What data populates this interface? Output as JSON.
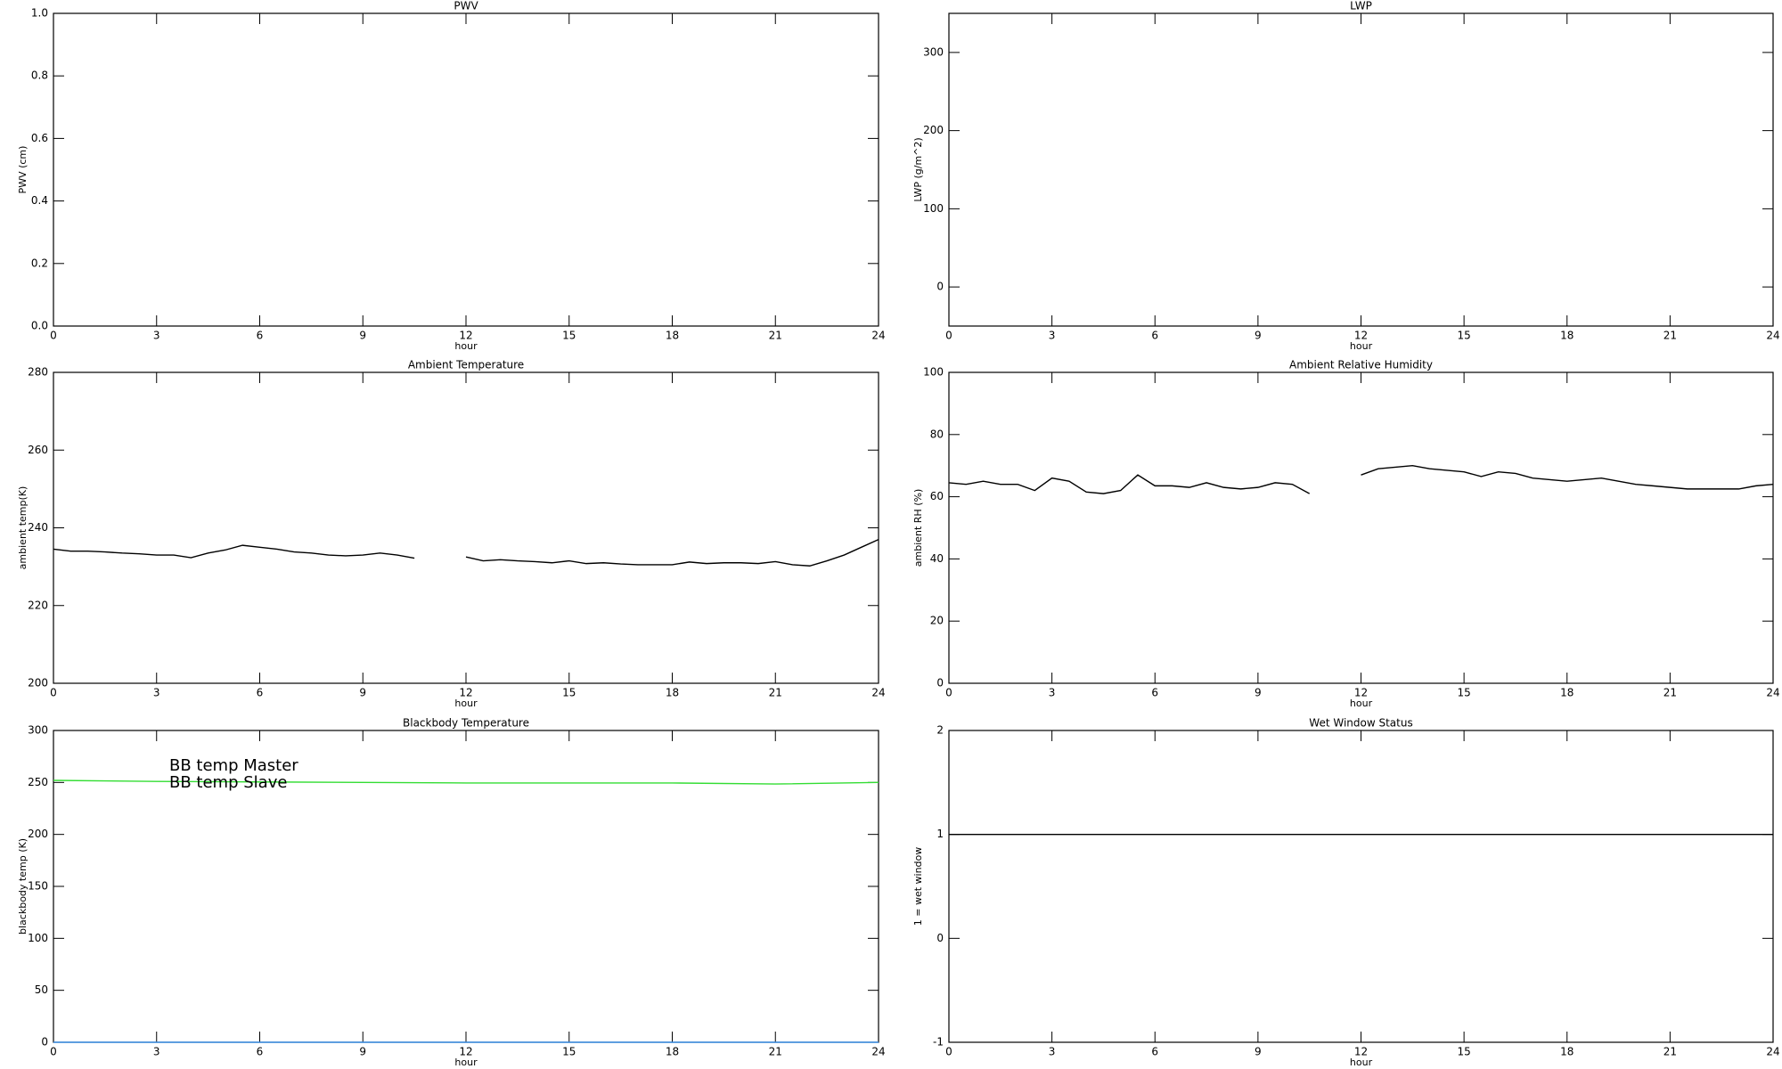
{
  "chart_data": [
    {
      "type": "line",
      "title": "PWV",
      "xlabel": "hour",
      "ylabel": "PWV (cm)",
      "xlim": [
        0,
        24
      ],
      "xticks": [
        0,
        3,
        6,
        9,
        12,
        15,
        18,
        21,
        24
      ],
      "ylim": [
        0,
        1
      ],
      "yticks": [
        {
          "value": 0,
          "label": "0.0"
        },
        0.2,
        0.4,
        0.6,
        0.8,
        {
          "value": 1,
          "label": "1.0"
        }
      ]
    },
    {
      "type": "line",
      "title": "LWP",
      "xlabel": "hour",
      "ylabel": "LWP (g/m^2)",
      "xlim": [
        0,
        24
      ],
      "xticks": [
        0,
        3,
        6,
        9,
        12,
        15,
        18,
        21,
        24
      ],
      "ylim": [
        -50,
        350
      ],
      "yticks": [
        0,
        100,
        200,
        300
      ]
    },
    {
      "type": "line",
      "title": "Ambient Temperature",
      "xlabel": "hour",
      "ylabel": "ambient temp(K)",
      "xlim": [
        0,
        24
      ],
      "xticks": [
        0,
        3,
        6,
        9,
        12,
        15,
        18,
        21,
        24
      ],
      "ylim": [
        200,
        280
      ],
      "yticks": [
        200,
        220,
        240,
        260,
        280
      ],
      "x": [
        0,
        0.5,
        1,
        1.5,
        2,
        2.5,
        3,
        3.5,
        4,
        4.5,
        5,
        5.5,
        6,
        6.5,
        7,
        7.5,
        8,
        8.5,
        9,
        9.5,
        10,
        10.5,
        11,
        11.5,
        12,
        12.5,
        13,
        13.5,
        14,
        14.5,
        15,
        15.5,
        16,
        16.5,
        17,
        17.5,
        18,
        18.5,
        19,
        19.5,
        20,
        20.5,
        21,
        21.5,
        22,
        22.5,
        23,
        23.5,
        24
      ],
      "series": [
        {
          "color": "#000000",
          "values": [
            234.5,
            234,
            234,
            233.8,
            233.5,
            233.3,
            233,
            233,
            232.3,
            233.5,
            234.3,
            235.5,
            235,
            234.5,
            233.8,
            233.5,
            233,
            232.8,
            233,
            233.5,
            233,
            232.2,
            null,
            null,
            232.5,
            231.5,
            231.8,
            231.5,
            231.3,
            231,
            231.5,
            230.8,
            231,
            230.7,
            230.5,
            230.5,
            230.5,
            231.2,
            230.8,
            231,
            231,
            230.8,
            231.3,
            230.5,
            230.2,
            231.5,
            233,
            235,
            237
          ]
        }
      ]
    },
    {
      "type": "line",
      "title": "Ambient Relative Humidity",
      "xlabel": "hour",
      "ylabel": "ambient RH (%)",
      "xlim": [
        0,
        24
      ],
      "xticks": [
        0,
        3,
        6,
        9,
        12,
        15,
        18,
        21,
        24
      ],
      "ylim": [
        0,
        100
      ],
      "yticks": [
        0,
        20,
        40,
        60,
        80,
        100
      ],
      "x": [
        0,
        0.5,
        1,
        1.5,
        2,
        2.5,
        3,
        3.5,
        4,
        4.5,
        5,
        5.5,
        6,
        6.5,
        7,
        7.5,
        8,
        8.5,
        9,
        9.5,
        10,
        10.5,
        11,
        11.5,
        12,
        12.5,
        13,
        13.5,
        14,
        14.5,
        15,
        15.5,
        16,
        16.5,
        17,
        17.5,
        18,
        18.5,
        19,
        19.5,
        20,
        20.5,
        21,
        21.5,
        22,
        22.5,
        23,
        23.5,
        24
      ],
      "series": [
        {
          "color": "#000000",
          "values": [
            64.5,
            64,
            65,
            64,
            64,
            62,
            66,
            65,
            61.5,
            61,
            62,
            67,
            63.5,
            63.5,
            63,
            64.5,
            63,
            62.5,
            63,
            64.5,
            64,
            61,
            null,
            null,
            67,
            69,
            69.5,
            70,
            69,
            68.5,
            68,
            66.5,
            68,
            67.5,
            66,
            65.5,
            65,
            65.5,
            66,
            65,
            64,
            63.5,
            63,
            62.5,
            62.5,
            62.5,
            62.5,
            63.5,
            64
          ]
        }
      ]
    },
    {
      "type": "line",
      "title": "Blackbody Temperature",
      "xlabel": "hour",
      "ylabel": "blackbody temp (K)",
      "xlim": [
        0,
        24
      ],
      "xticks": [
        0,
        3,
        6,
        9,
        12,
        15,
        18,
        21,
        24
      ],
      "ylim": [
        0,
        300
      ],
      "yticks": [
        0,
        50,
        100,
        150,
        200,
        250,
        300
      ],
      "legend": "upper left",
      "x": [
        0,
        3,
        6,
        9,
        12,
        15,
        18,
        21,
        24
      ],
      "series": [
        {
          "name": "BB temp Master",
          "color": "#3a8ee6",
          "values": [
            0,
            0,
            0,
            0,
            0,
            0,
            0,
            0,
            0
          ]
        },
        {
          "name": "BB temp Slave",
          "color": "#33dd33",
          "values": [
            252,
            251,
            250.5,
            250,
            249.5,
            249.5,
            249.5,
            248.5,
            250
          ]
        }
      ]
    },
    {
      "type": "line",
      "title": "Wet Window Status",
      "xlabel": "hour",
      "ylabel": "1 = wet window",
      "xlim": [
        0,
        24
      ],
      "xticks": [
        0,
        3,
        6,
        9,
        12,
        15,
        18,
        21,
        24
      ],
      "ylim": [
        -1,
        2
      ],
      "yticks": [
        -1,
        0,
        1,
        2
      ],
      "x": [
        0,
        24
      ],
      "series": [
        {
          "color": "#000000",
          "values": [
            1,
            1
          ]
        }
      ]
    }
  ]
}
